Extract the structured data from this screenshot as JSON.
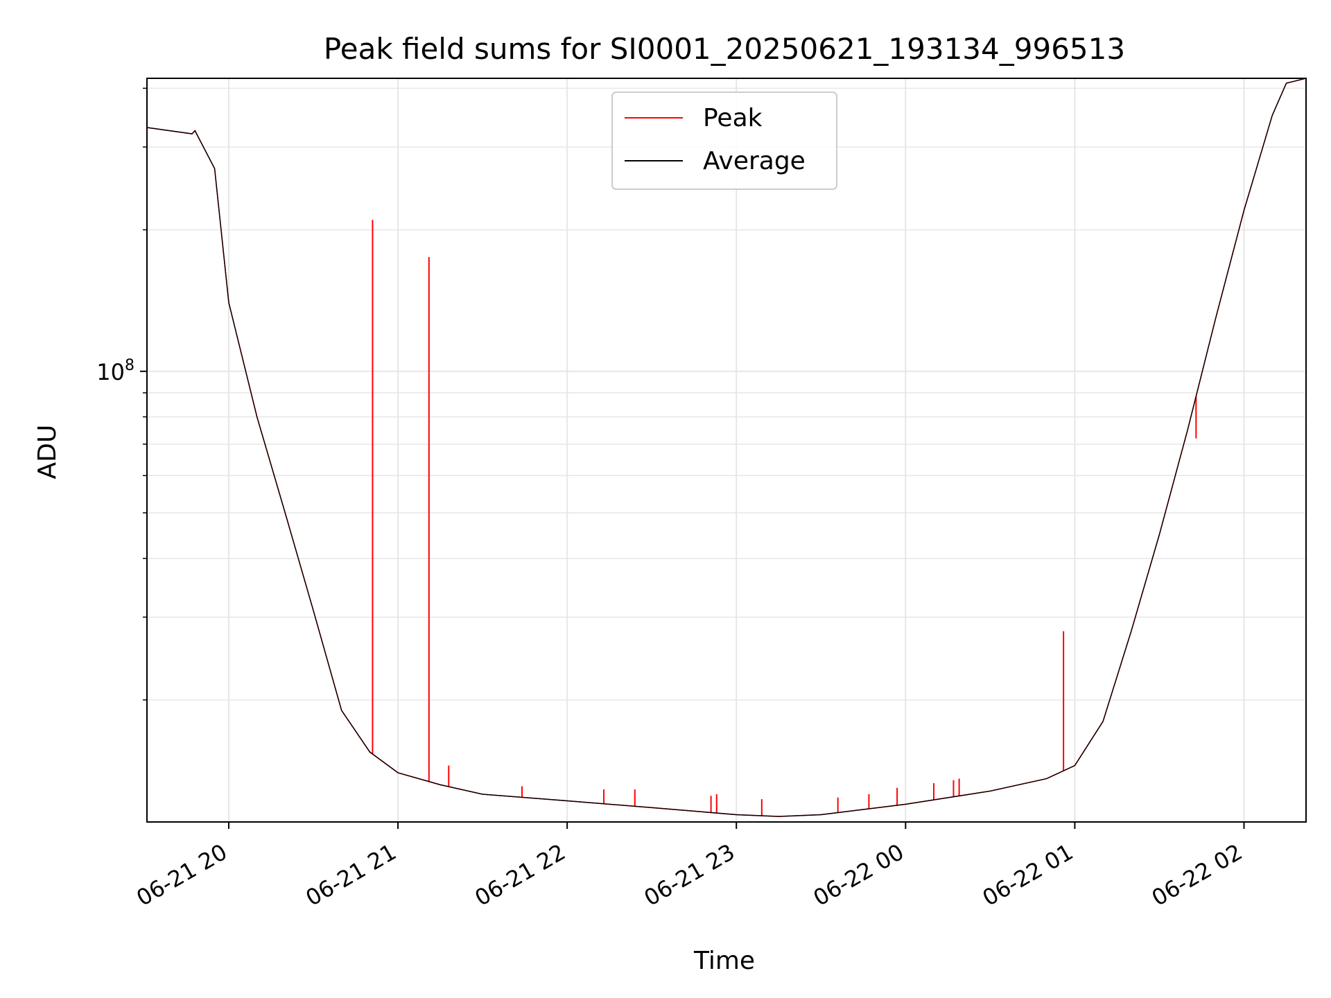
{
  "chart_data": {
    "type": "line",
    "title": "Peak field sums for SI0001_20250621_193134_996513",
    "xlabel": "Time",
    "ylabel": "ADU",
    "yscale": "log",
    "grid": true,
    "legend_placement": "upper center",
    "colors": {
      "Peak": "#ff0000",
      "Average": "#000000"
    },
    "x_tick_labels": [
      "06-21 20",
      "06-21 21",
      "06-21 22",
      "06-21 23",
      "06-22 00",
      "06-22 01",
      "06-22 02"
    ],
    "y_tick_label": {
      "base": "10",
      "exponent": "8"
    },
    "xlim": [
      "2025-06-21 19:31",
      "2025-06-22 02:22"
    ],
    "ylim": [
      11000000,
      420000000
    ],
    "series": [
      {
        "name": "Average",
        "x": [
          "2025-06-21 19:31",
          "2025-06-21 19:47",
          "2025-06-21 19:48",
          "2025-06-21 19:55",
          "2025-06-21 20:00",
          "2025-06-21 20:10",
          "2025-06-21 20:20",
          "2025-06-21 20:30",
          "2025-06-21 20:40",
          "2025-06-21 20:50",
          "2025-06-21 21:00",
          "2025-06-21 21:15",
          "2025-06-21 21:30",
          "2025-06-21 22:00",
          "2025-06-21 22:30",
          "2025-06-21 23:00",
          "2025-06-21 23:15",
          "2025-06-21 23:30",
          "2025-06-22 00:00",
          "2025-06-22 00:30",
          "2025-06-22 00:50",
          "2025-06-22 01:00",
          "2025-06-22 01:10",
          "2025-06-22 01:20",
          "2025-06-22 01:30",
          "2025-06-22 01:40",
          "2025-06-22 01:50",
          "2025-06-22 02:00",
          "2025-06-22 02:10",
          "2025-06-22 02:15",
          "2025-06-22 02:22"
        ],
        "y": [
          330000000,
          320000000,
          325000000,
          270000000,
          140000000,
          80000000,
          50000000,
          31000000,
          19000000,
          15500000,
          14000000,
          13200000,
          12600000,
          12200000,
          11800000,
          11400000,
          11300000,
          11400000,
          12000000,
          12800000,
          13600000,
          14500000,
          18000000,
          28000000,
          45000000,
          75000000,
          130000000,
          220000000,
          350000000,
          410000000,
          420000000
        ]
      },
      {
        "name": "Peak",
        "x": [
          "2025-06-21 20:51",
          "2025-06-21 21:11",
          "2025-06-21 21:18",
          "2025-06-21 21:44",
          "2025-06-21 22:13",
          "2025-06-21 22:24",
          "2025-06-21 22:51",
          "2025-06-21 22:53",
          "2025-06-21 23:09",
          "2025-06-21 23:36",
          "2025-06-21 23:47",
          "2025-06-21 23:57",
          "2025-06-22 00:10",
          "2025-06-22 00:17",
          "2025-06-22 00:19",
          "2025-06-22 00:56",
          "2025-06-22 01:43"
        ],
        "y": [
          210000000,
          175000000,
          14500000,
          13100000,
          12900000,
          12900000,
          12500000,
          12600000,
          12300000,
          12400000,
          12600000,
          13000000,
          13300000,
          13500000,
          13600000,
          28000000,
          72000000
        ]
      }
    ]
  }
}
